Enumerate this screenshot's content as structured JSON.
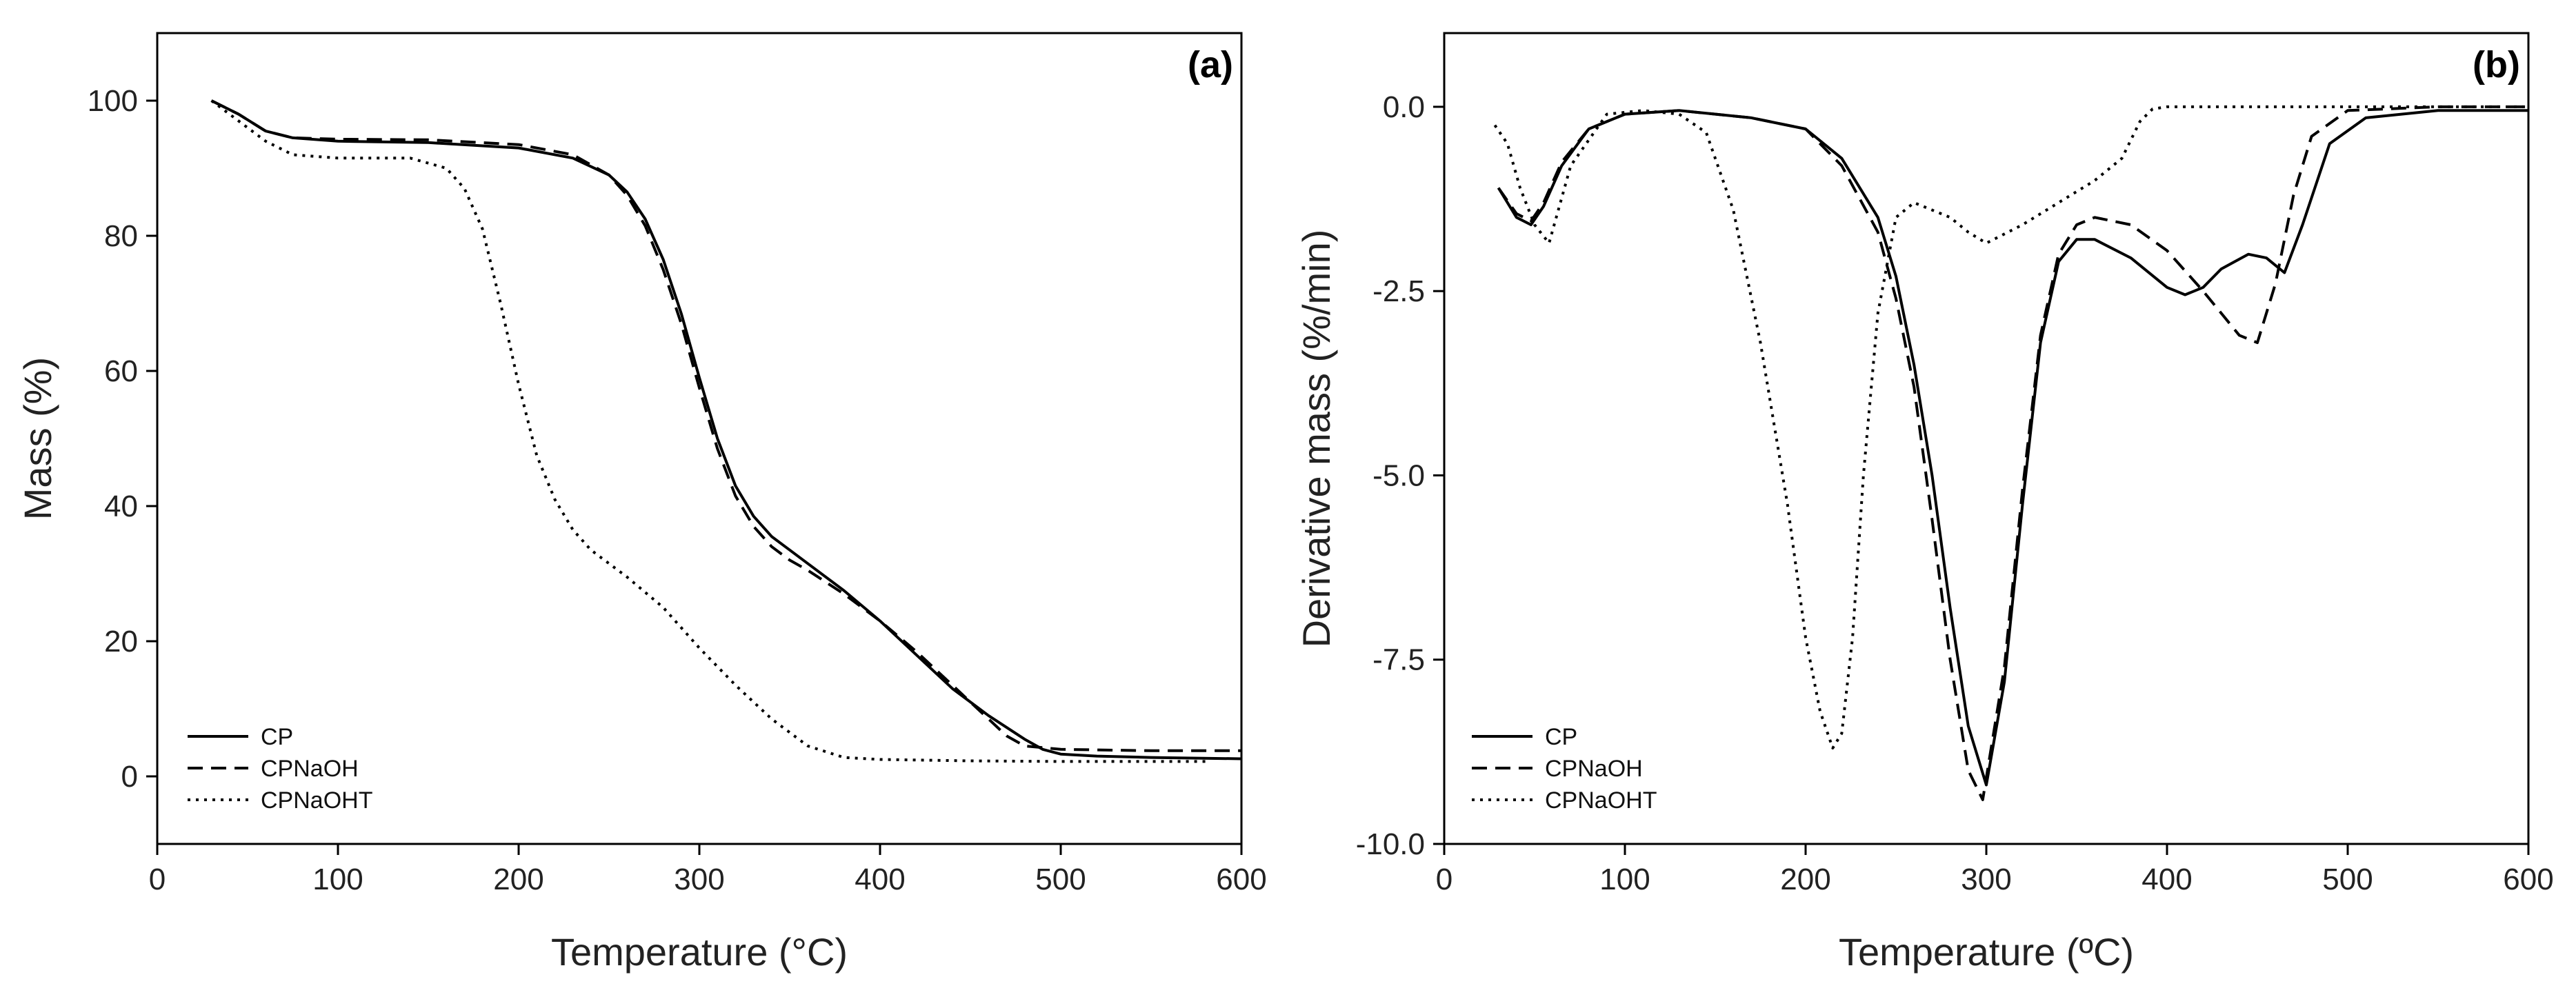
{
  "chart_data": [
    {
      "type": "line",
      "panel_label": "(a)",
      "xlabel": "Temperature (°C)",
      "ylabel": "Mass (%)",
      "xlim": [
        0,
        600
      ],
      "ylim": [
        -10,
        110
      ],
      "xticks": [
        0,
        100,
        200,
        300,
        400,
        500,
        600
      ],
      "yticks": [
        0,
        20,
        40,
        60,
        80,
        100
      ],
      "xtick_labels": [
        "0",
        "100",
        "200",
        "300",
        "400",
        "500",
        "600"
      ],
      "ytick_labels": [
        "0",
        "20",
        "40",
        "60",
        "80",
        "100"
      ],
      "legend_position": "bottom-left",
      "series": [
        {
          "name": "CP",
          "style": "solid",
          "x": [
            30,
            45,
            60,
            75,
            100,
            150,
            200,
            230,
            250,
            260,
            270,
            280,
            290,
            300,
            310,
            320,
            330,
            340,
            350,
            360,
            380,
            400,
            420,
            440,
            460,
            480,
            490,
            500,
            520,
            550,
            600
          ],
          "y": [
            100,
            98,
            95.5,
            94.5,
            94,
            93.8,
            93,
            91.5,
            89,
            86.5,
            82.5,
            76.5,
            68.5,
            59,
            50,
            43,
            38.5,
            35.5,
            33.5,
            31.5,
            27.5,
            23,
            18,
            13,
            9,
            5.5,
            4,
            3.3,
            3,
            2.8,
            2.6
          ]
        },
        {
          "name": "CPNaOH",
          "style": "dashed",
          "x": [
            30,
            45,
            60,
            75,
            100,
            150,
            200,
            230,
            250,
            260,
            270,
            280,
            290,
            300,
            310,
            320,
            330,
            340,
            350,
            360,
            380,
            400,
            420,
            440,
            460,
            470,
            480,
            500,
            550,
            600
          ],
          "y": [
            100,
            98,
            95.5,
            94.5,
            94.3,
            94.2,
            93.5,
            92,
            89,
            86,
            81.5,
            75,
            67,
            57.5,
            48.5,
            41.5,
            37,
            34,
            32,
            30.5,
            27,
            23,
            18.5,
            13.5,
            8.5,
            6,
            4.5,
            4,
            3.8,
            3.8
          ]
        },
        {
          "name": "CPNaOHT",
          "style": "dotted",
          "x": [
            30,
            45,
            60,
            75,
            100,
            140,
            160,
            170,
            180,
            190,
            200,
            210,
            220,
            230,
            240,
            260,
            280,
            300,
            320,
            340,
            360,
            380,
            400,
            450,
            500,
            550,
            580
          ],
          "y": [
            100,
            97,
            94,
            92,
            91.5,
            91.5,
            90,
            87,
            81,
            70,
            58,
            47.5,
            41,
            36.5,
            33.5,
            29.5,
            25,
            19,
            13.5,
            8.5,
            4.5,
            2.8,
            2.5,
            2.3,
            2.2,
            2.2,
            2.2
          ]
        }
      ]
    },
    {
      "type": "line",
      "panel_label": "(b)",
      "xlabel": "Temperature (ºC)",
      "ylabel": "Derivative mass  (%/min)",
      "xlim": [
        0,
        600
      ],
      "ylim": [
        -10,
        1
      ],
      "xticks": [
        0,
        100,
        200,
        300,
        400,
        500,
        600
      ],
      "yticks": [
        0,
        -2.5,
        -5,
        -7.5,
        -10
      ],
      "xtick_labels": [
        "0",
        "100",
        "200",
        "300",
        "400",
        "500",
        "600"
      ],
      "ytick_labels": [
        "0.0",
        "-2.5",
        "-5.0",
        "-7.5",
        "-10.0"
      ],
      "legend_position": "bottom-left",
      "series": [
        {
          "name": "CP",
          "style": "solid",
          "x": [
            30,
            40,
            48,
            55,
            65,
            80,
            100,
            130,
            170,
            200,
            220,
            240,
            250,
            260,
            270,
            280,
            290,
            300,
            310,
            320,
            330,
            340,
            350,
            360,
            380,
            400,
            410,
            420,
            430,
            445,
            455,
            465,
            475,
            490,
            510,
            550,
            600
          ],
          "y": [
            -1.1,
            -1.5,
            -1.6,
            -1.35,
            -0.8,
            -0.3,
            -0.1,
            -0.05,
            -0.15,
            -0.3,
            -0.7,
            -1.5,
            -2.3,
            -3.5,
            -5.0,
            -6.8,
            -8.4,
            -9.2,
            -7.8,
            -5.4,
            -3.2,
            -2.1,
            -1.8,
            -1.8,
            -2.05,
            -2.45,
            -2.55,
            -2.45,
            -2.2,
            -2.0,
            -2.05,
            -2.25,
            -1.6,
            -0.5,
            -0.15,
            -0.05,
            -0.05
          ]
        },
        {
          "name": "CPNaOH",
          "style": "dashed",
          "x": [
            30,
            40,
            48,
            55,
            65,
            80,
            100,
            130,
            170,
            200,
            220,
            240,
            250,
            260,
            270,
            280,
            290,
            298,
            310,
            320,
            330,
            340,
            350,
            360,
            380,
            400,
            420,
            440,
            450,
            460,
            470,
            480,
            500,
            550,
            600
          ],
          "y": [
            -1.1,
            -1.45,
            -1.55,
            -1.3,
            -0.75,
            -0.3,
            -0.1,
            -0.05,
            -0.15,
            -0.3,
            -0.8,
            -1.7,
            -2.6,
            -3.8,
            -5.6,
            -7.5,
            -9.0,
            -9.4,
            -7.6,
            -5.2,
            -3.1,
            -2.0,
            -1.6,
            -1.5,
            -1.6,
            -1.95,
            -2.5,
            -3.1,
            -3.2,
            -2.4,
            -1.2,
            -0.4,
            -0.05,
            0,
            0
          ]
        },
        {
          "name": "CPNaOHT",
          "style": "dotted",
          "x": [
            28,
            35,
            42,
            50,
            58,
            70,
            90,
            110,
            130,
            145,
            160,
            175,
            190,
            200,
            208,
            215,
            220,
            226,
            232,
            240,
            250,
            260,
            270,
            280,
            290,
            300,
            320,
            340,
            360,
            375,
            385,
            392,
            400,
            450,
            500,
            550,
            600
          ],
          "y": [
            -0.25,
            -0.5,
            -1.1,
            -1.6,
            -1.85,
            -0.8,
            -0.1,
            -0.05,
            -0.1,
            -0.35,
            -1.4,
            -3.2,
            -5.4,
            -7.2,
            -8.2,
            -8.7,
            -8.5,
            -7.2,
            -5.0,
            -2.8,
            -1.5,
            -1.3,
            -1.4,
            -1.5,
            -1.7,
            -1.85,
            -1.6,
            -1.3,
            -1.0,
            -0.7,
            -0.2,
            -0.03,
            0,
            0,
            0,
            0,
            0
          ]
        }
      ]
    }
  ]
}
